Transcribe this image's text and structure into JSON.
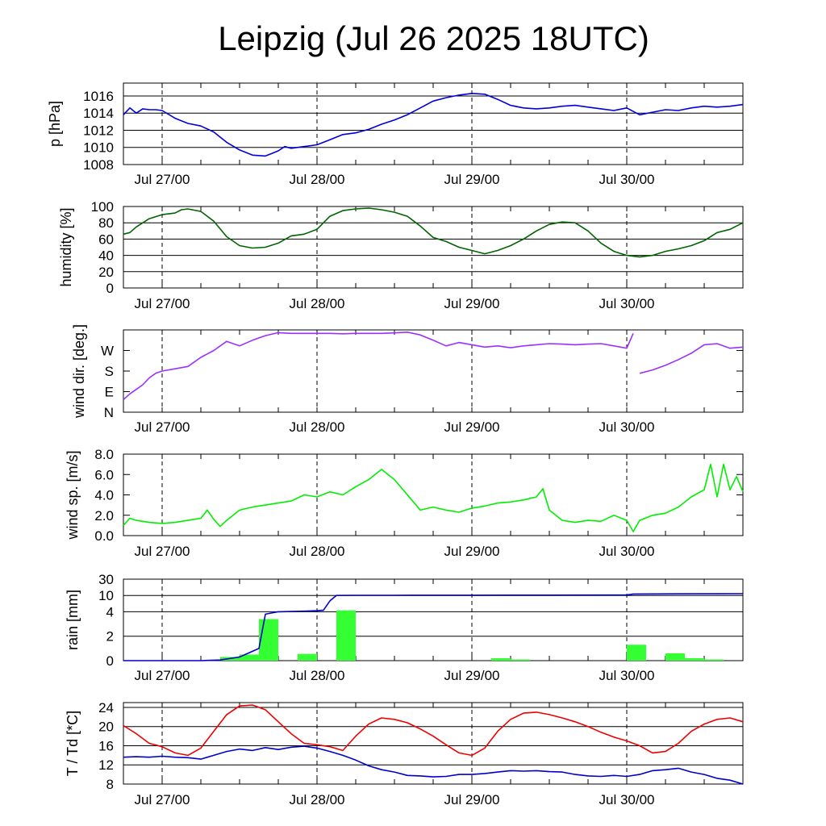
{
  "title": "Leipzig (Jul 26 2025 18UTC)",
  "x_tick_labels": [
    "Jul 27/00",
    "Jul 28/00",
    "Jul 29/00",
    "Jul 30/00"
  ],
  "chart_data": [
    {
      "type": "line",
      "id": "pressure",
      "ylabel": "p [hPa]",
      "ylim": [
        1008,
        1017.5
      ],
      "yticks": [
        1008,
        1010,
        1012,
        1014,
        1016
      ],
      "ytick_labels": [
        "1008",
        "1010",
        "1012",
        "1014",
        "1016"
      ],
      "grid": true,
      "x_range_hours": [
        -6,
        90
      ],
      "series": [
        {
          "color": "#0000dd",
          "x": [
            -6,
            -5,
            -4,
            -3,
            -2,
            -1,
            0,
            2,
            4,
            6,
            8,
            10,
            12,
            14,
            16,
            17,
            18,
            19,
            20,
            22,
            24,
            26,
            28,
            30,
            32,
            34,
            36,
            38,
            40,
            42,
            44,
            46,
            48,
            50,
            52,
            54,
            56,
            58,
            60,
            62,
            64,
            66,
            68,
            70,
            72,
            74,
            76,
            78,
            80,
            82,
            84,
            86,
            88,
            90
          ],
          "y": [
            1013.8,
            1014.6,
            1014.0,
            1014.5,
            1014.4,
            1014.4,
            1014.3,
            1013.4,
            1012.8,
            1012.5,
            1011.8,
            1010.6,
            1009.7,
            1009.1,
            1009.0,
            1009.3,
            1009.6,
            1010.1,
            1009.9,
            1010.1,
            1010.3,
            1010.9,
            1011.5,
            1011.7,
            1012.1,
            1012.7,
            1013.2,
            1013.8,
            1014.6,
            1015.4,
            1015.8,
            1016.1,
            1016.3,
            1016.2,
            1015.6,
            1014.9,
            1014.6,
            1014.5,
            1014.6,
            1014.8,
            1014.9,
            1014.7,
            1014.5,
            1014.3,
            1014.6,
            1013.8,
            1014.1,
            1014.4,
            1014.3,
            1014.6,
            1014.8,
            1014.7,
            1014.8,
            1015.0
          ]
        }
      ]
    },
    {
      "type": "line",
      "id": "humidity",
      "ylabel": "humidity [%]",
      "ylim": [
        0,
        100
      ],
      "yticks": [
        0,
        20,
        40,
        60,
        80,
        100
      ],
      "ytick_labels": [
        "0",
        "20",
        "40",
        "60",
        "80",
        "100"
      ],
      "grid": true,
      "series": [
        {
          "color": "#006400",
          "x": [
            -6,
            -5,
            -4,
            -2,
            0,
            2,
            3,
            4,
            6,
            8,
            10,
            12,
            14,
            16,
            18,
            20,
            22,
            24,
            26,
            28,
            30,
            32,
            34,
            36,
            38,
            40,
            42,
            44,
            46,
            48,
            50,
            52,
            54,
            56,
            58,
            60,
            62,
            64,
            66,
            68,
            70,
            72,
            74,
            76,
            78,
            80,
            82,
            84,
            86,
            88,
            90
          ],
          "y": [
            66,
            68,
            75,
            85,
            90,
            92,
            96,
            97,
            94,
            82,
            63,
            52,
            49,
            50,
            55,
            64,
            66,
            72,
            88,
            95,
            97,
            98,
            96,
            93,
            88,
            76,
            62,
            57,
            50,
            46,
            42,
            46,
            52,
            60,
            70,
            78,
            81,
            80,
            70,
            55,
            45,
            40,
            38,
            40,
            45,
            48,
            52,
            58,
            68,
            72,
            80
          ]
        }
      ]
    },
    {
      "type": "line",
      "id": "wind_direction",
      "ylabel": "wind dir. [deg.]",
      "ylim": [
        0,
        360
      ],
      "yticks": [
        0,
        90,
        180,
        270
      ],
      "ytick_labels": [
        "N",
        "E",
        "S",
        "W"
      ],
      "grid": false,
      "series": [
        {
          "color": "#9b30ff",
          "x": [
            -6,
            -5,
            -4,
            -3,
            -2,
            -1,
            0,
            2,
            4,
            6,
            8,
            10,
            12,
            14,
            16,
            18,
            20,
            22,
            24,
            26,
            28,
            30,
            32,
            34,
            36,
            38,
            40,
            42,
            44,
            46,
            48,
            50,
            52,
            54,
            56,
            58,
            60,
            62,
            64,
            66,
            68,
            70,
            72,
            73,
            74,
            76,
            78,
            80,
            82,
            84,
            86,
            88,
            90
          ],
          "y": [
            55,
            80,
            100,
            120,
            150,
            170,
            180,
            190,
            200,
            240,
            270,
            310,
            290,
            315,
            335,
            348,
            345,
            345,
            345,
            345,
            343,
            345,
            345,
            345,
            347,
            350,
            338,
            315,
            290,
            305,
            295,
            285,
            290,
            282,
            290,
            295,
            300,
            298,
            295,
            298,
            300,
            290,
            280,
            345,
            170,
            185,
            205,
            230,
            258,
            295,
            300,
            280,
            285
          ]
        }
      ]
    },
    {
      "type": "line",
      "id": "wind_speed",
      "ylabel": "wind sp. [m/s]",
      "ylim": [
        0,
        8
      ],
      "yticks": [
        0,
        2,
        4,
        6,
        8
      ],
      "ytick_labels": [
        "0.0",
        "2.0",
        "4.0",
        "6.0",
        "8.0"
      ],
      "grid": false,
      "series": [
        {
          "color": "#00ee00",
          "x": [
            -6,
            -5,
            -4,
            -2,
            0,
            2,
            4,
            6,
            7,
            8,
            9,
            10,
            12,
            14,
            16,
            18,
            20,
            22,
            24,
            26,
            28,
            30,
            32,
            34,
            35,
            36,
            38,
            40,
            42,
            44,
            46,
            48,
            50,
            52,
            54,
            56,
            58,
            59,
            60,
            62,
            64,
            66,
            68,
            70,
            72,
            73,
            74,
            76,
            78,
            80,
            82,
            84,
            85,
            86,
            87,
            88,
            89,
            90
          ],
          "y": [
            1.0,
            1.7,
            1.5,
            1.3,
            1.2,
            1.3,
            1.5,
            1.7,
            2.5,
            1.6,
            0.9,
            1.5,
            2.5,
            2.8,
            3.0,
            3.2,
            3.4,
            4.0,
            3.8,
            4.3,
            4.0,
            4.8,
            5.5,
            6.5,
            6.0,
            5.5,
            4.0,
            2.5,
            2.8,
            2.5,
            2.3,
            2.7,
            2.9,
            3.2,
            3.3,
            3.5,
            3.8,
            4.6,
            2.5,
            1.5,
            1.3,
            1.5,
            1.4,
            2.0,
            1.5,
            0.4,
            1.5,
            2.0,
            2.2,
            2.8,
            3.8,
            4.5,
            7.0,
            3.8,
            7.0,
            4.5,
            5.8,
            4.3
          ]
        }
      ]
    },
    {
      "type": "bar+line",
      "id": "rain",
      "ylabel": "rain [mm]",
      "ylim": [
        0,
        30
      ],
      "yticks": [
        0,
        2,
        4,
        10,
        30
      ],
      "ytick_labels": [
        "0",
        "2",
        "4",
        "10",
        "30"
      ],
      "grid": true,
      "bars": {
        "color": "#33ff33",
        "bin_hours": 3,
        "x_start": [
          9,
          12,
          15,
          21,
          27,
          51,
          54,
          72,
          78,
          81,
          84
        ],
        "values": [
          0.3,
          0.5,
          3.4,
          0.55,
          4.5,
          0.2,
          0.1,
          1.3,
          0.6,
          0.2,
          0.1
        ]
      },
      "series": [
        {
          "color": "#0000cc",
          "x": [
            -6,
            6,
            9,
            12,
            15,
            16,
            18,
            22,
            24,
            25,
            26,
            27,
            30,
            36,
            48,
            60,
            70,
            72,
            73,
            80,
            90
          ],
          "y": [
            0,
            0,
            0.05,
            0.3,
            1.0,
            3.8,
            4.0,
            4.2,
            4.4,
            4.6,
            8,
            10,
            10.2,
            10.2,
            10.3,
            10.4,
            10.5,
            10.6,
            11.8,
            12.0,
            12.2
          ]
        }
      ]
    },
    {
      "type": "line",
      "id": "temperature",
      "ylabel": "T / Td [*C]",
      "ylim": [
        8,
        25
      ],
      "yticks": [
        8,
        12,
        16,
        20,
        24
      ],
      "ytick_labels": [
        "8",
        "12",
        "16",
        "20",
        "24"
      ],
      "grid": true,
      "series": [
        {
          "color": "#ee0000",
          "x": [
            -6,
            -4,
            -2,
            0,
            2,
            4,
            6,
            8,
            10,
            12,
            14,
            16,
            18,
            20,
            22,
            24,
            26,
            28,
            30,
            32,
            34,
            36,
            38,
            40,
            42,
            44,
            46,
            48,
            50,
            52,
            54,
            56,
            58,
            60,
            62,
            64,
            66,
            68,
            70,
            72,
            74,
            76,
            78,
            80,
            82,
            84,
            86,
            88,
            90
          ],
          "y": [
            20.2,
            18.5,
            16.5,
            15.8,
            14.5,
            14.0,
            15.5,
            19.0,
            22.5,
            24.3,
            24.5,
            23.5,
            21.0,
            18.5,
            16.5,
            16.2,
            15.8,
            15.0,
            18.0,
            20.5,
            21.8,
            21.5,
            20.8,
            19.5,
            18.0,
            16.2,
            14.5,
            14.0,
            15.5,
            19.0,
            21.5,
            22.8,
            23.0,
            22.5,
            21.8,
            21.0,
            20.0,
            18.8,
            17.8,
            17.0,
            16.0,
            14.5,
            14.8,
            16.5,
            19.0,
            20.5,
            21.5,
            21.8,
            21.0
          ]
        },
        {
          "color": "#0000cc",
          "x": [
            -6,
            -4,
            -2,
            0,
            2,
            4,
            6,
            8,
            10,
            12,
            14,
            16,
            18,
            20,
            22,
            24,
            26,
            28,
            30,
            32,
            34,
            36,
            38,
            40,
            42,
            44,
            46,
            48,
            50,
            52,
            54,
            56,
            58,
            60,
            62,
            64,
            66,
            68,
            70,
            72,
            74,
            76,
            78,
            80,
            82,
            84,
            86,
            88,
            90
          ],
          "y": [
            13.6,
            13.7,
            13.6,
            13.8,
            13.6,
            13.5,
            13.2,
            14.0,
            14.8,
            15.3,
            15.0,
            15.6,
            15.2,
            15.7,
            15.9,
            15.5,
            14.8,
            14.0,
            13.0,
            11.8,
            11.0,
            10.5,
            9.8,
            9.7,
            9.5,
            9.6,
            10.0,
            10.0,
            10.2,
            10.5,
            10.8,
            10.7,
            10.8,
            10.6,
            10.5,
            10.0,
            9.7,
            9.6,
            9.8,
            9.6,
            10.0,
            10.8,
            11.0,
            11.3,
            10.5,
            10.0,
            9.2,
            8.8,
            8.0
          ]
        }
      ]
    }
  ]
}
